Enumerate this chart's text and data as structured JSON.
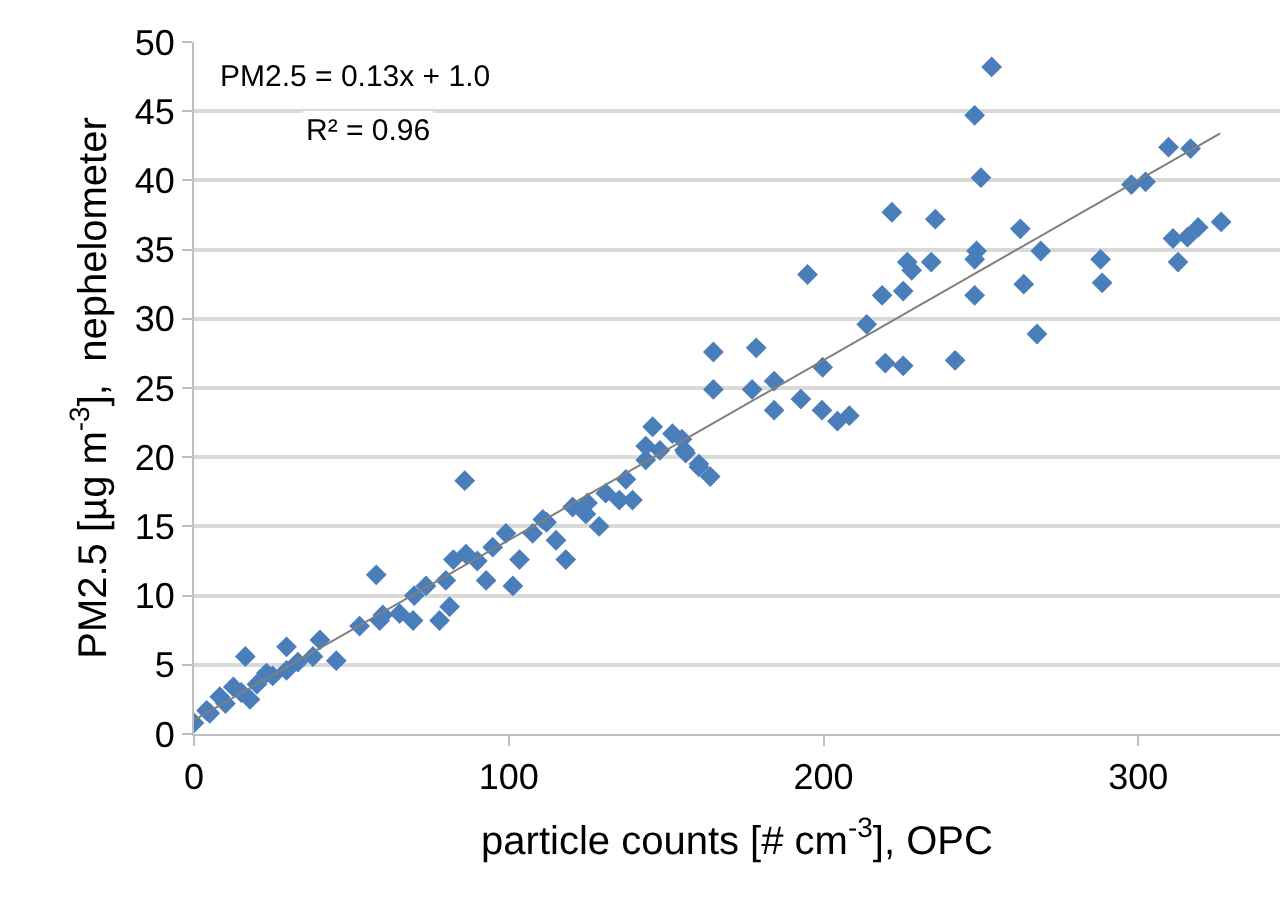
{
  "chart_data": {
    "type": "scatter",
    "xlabel": "particle counts [# cm$^{-3}$], OPC",
    "ylabel": "PM2.5 [µg m$^{-3}$],  nephelometer",
    "annotations": [
      "PM2.5 = 0.13x + 1.0",
      "R² = 0.96"
    ],
    "xlim": [
      0,
      345
    ],
    "xticks": [
      0,
      100,
      200,
      300
    ],
    "ylim": [
      0,
      50
    ],
    "yticks": [
      0,
      5,
      10,
      15,
      20,
      25,
      30,
      35,
      40,
      45,
      50
    ],
    "grid": "y",
    "marker": "diamond",
    "series": [
      {
        "color": "#4a7ebb",
        "x": [
          253.4,
          248,
          250,
          221.7,
          235.5,
          262.5,
          248.6,
          248,
          269,
          226.6,
          228,
          234.2,
          194.9,
          218.6,
          225.3,
          248,
          263.6,
          267.8,
          288,
          288.5,
          297.8,
          302.3,
          309.6,
          316.6,
          311,
          315.6,
          319,
          312.6,
          326.3,
          213.7,
          165,
          178.6,
          165,
          177.3,
          184.3,
          184.3,
          192.8,
          199.7,
          199.5,
          204.4,
          208.2,
          219.6,
          225.3,
          241.8,
          155.8,
          160.4,
          164,
          86,
          16.3,
          0,
          4,
          8.2,
          12.5,
          17.8,
          23,
          29.4,
          29.4,
          37.8,
          40,
          45.2,
          52.6,
          57.9,
          59,
          65.3,
          69.6,
          73.7,
          78,
          80,
          82.4,
          81.2,
          86.4,
          92.8,
          94.9,
          99.1,
          101.3,
          103.4,
          107.6,
          110.8,
          115,
          118.1,
          120.3,
          124.5,
          128.7,
          130.8,
          135.1,
          137.2,
          143.5,
          145.7,
          143.5,
          152,
          156.2,
          160.4,
          139.3,
          5,
          10,
          15,
          20,
          25,
          33,
          60,
          70,
          90,
          112,
          125,
          148,
          155
        ],
        "values": [
          48.2,
          44.7,
          40.2,
          37.7,
          37.2,
          36.5,
          34.9,
          34.3,
          34.9,
          34.1,
          33.5,
          34.1,
          33.2,
          31.7,
          32,
          31.7,
          32.5,
          28.9,
          34.3,
          32.6,
          39.7,
          39.9,
          42.4,
          42.3,
          35.8,
          35.9,
          36.6,
          34.1,
          37.0,
          29.6,
          27.6,
          27.9,
          24.9,
          24.9,
          25.5,
          23.4,
          24.2,
          26.5,
          23.4,
          22.6,
          23,
          26.8,
          26.6,
          27,
          20.5,
          19.5,
          18.6,
          18.3,
          5.6,
          0.8,
          1.7,
          2.7,
          3.4,
          2.5,
          4.4,
          6.3,
          4.6,
          5.6,
          6.8,
          5.3,
          7.8,
          11.5,
          8.2,
          8.7,
          8.2,
          10.7,
          8.2,
          11.1,
          12.6,
          9.2,
          13,
          11.1,
          13.5,
          14.5,
          10.7,
          12.6,
          14.5,
          15.5,
          14,
          12.6,
          16.4,
          15.9,
          15,
          17.4,
          16.9,
          18.4,
          19.8,
          22.2,
          20.8,
          21.7,
          20.3,
          19.3,
          16.9,
          1.5,
          2.2,
          3,
          3.6,
          4.2,
          5.2,
          8.6,
          10,
          12.5,
          15.3,
          16.7,
          20.5,
          21.3
        ]
      },
      {
        "type": "line",
        "marker": "none",
        "color": "#7f7f7f",
        "x": [
          0,
          326
        ],
        "values": [
          1.0,
          43.4
        ]
      }
    ]
  }
}
